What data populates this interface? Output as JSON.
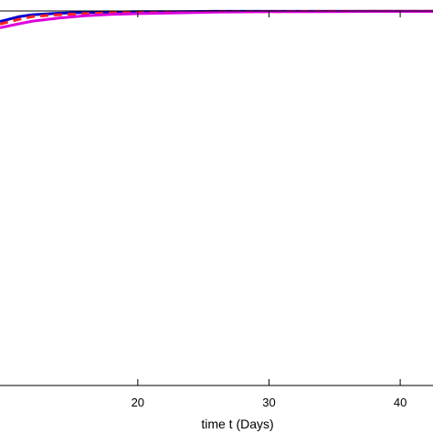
{
  "chart_data": {
    "type": "line",
    "xlabel": "time t (Days)",
    "ylabel": "",
    "title": "",
    "xlim": [
      9.5,
      42.5
    ],
    "ylim": [
      0,
      1
    ],
    "xticks": [
      20,
      30,
      40
    ],
    "grid": false,
    "series": [
      {
        "color": "#0000cc",
        "dash": "solid",
        "x": [
          9.5,
          11,
          12,
          14,
          16,
          18,
          20,
          23,
          26,
          30,
          34,
          38,
          42.5
        ],
        "y": [
          0.972,
          0.985,
          0.99,
          0.994,
          0.996,
          0.997,
          0.998,
          0.998,
          0.999,
          0.999,
          0.999,
          0.999,
          0.999
        ]
      },
      {
        "color": "#ff2222",
        "dash": "dashed",
        "x": [
          9.5,
          11,
          12,
          14,
          16,
          18,
          20,
          23,
          26,
          30,
          34,
          38,
          42.5
        ],
        "y": [
          0.965,
          0.978,
          0.985,
          0.99,
          0.993,
          0.995,
          0.996,
          0.997,
          0.998,
          0.998,
          0.999,
          0.999,
          0.999
        ]
      },
      {
        "color": "#dd00dd",
        "dash": "solid",
        "x": [
          9.5,
          11,
          12,
          14,
          16,
          18,
          20,
          23,
          26,
          30,
          34,
          38,
          42.5
        ],
        "y": [
          0.955,
          0.966,
          0.973,
          0.981,
          0.987,
          0.991,
          0.993,
          0.995,
          0.997,
          0.998,
          0.998,
          0.999,
          0.999
        ]
      }
    ]
  }
}
